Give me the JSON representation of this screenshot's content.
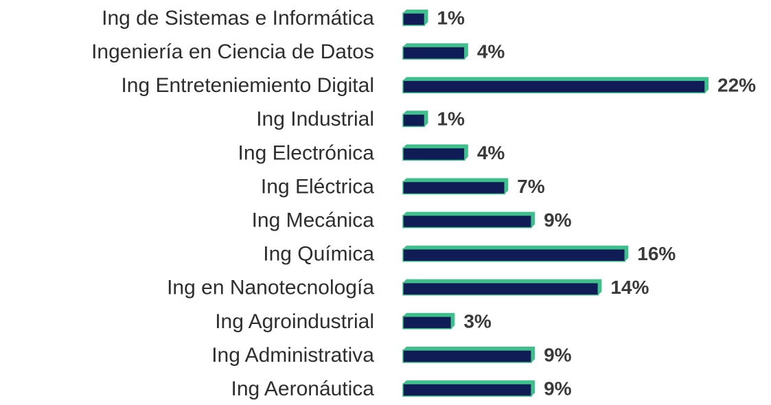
{
  "chart_data": {
    "type": "bar",
    "orientation": "horizontal",
    "categories": [
      "Ing de Sistemas e Informática",
      "Ingeniería en Ciencia de Datos",
      "Ing Entreteniemiento Digital",
      "Ing Industrial",
      "Ing Electrónica",
      "Ing Eléctrica",
      "Ing Mecánica",
      "Ing Química",
      "Ing en Nanotecnología",
      "Ing Agroindustrial",
      "Ing Administrativa",
      "Ing Aeronáutica"
    ],
    "values": [
      1,
      4,
      22,
      1,
      4,
      7,
      9,
      16,
      14,
      3,
      9,
      9
    ],
    "value_labels": [
      "1%",
      "4%",
      "22%",
      "1%",
      "4%",
      "7%",
      "9%",
      "16%",
      "14%",
      "3%",
      "9%",
      "9%"
    ],
    "color": "#0f1c55",
    "edge_color": "#3fbf8c"
  }
}
